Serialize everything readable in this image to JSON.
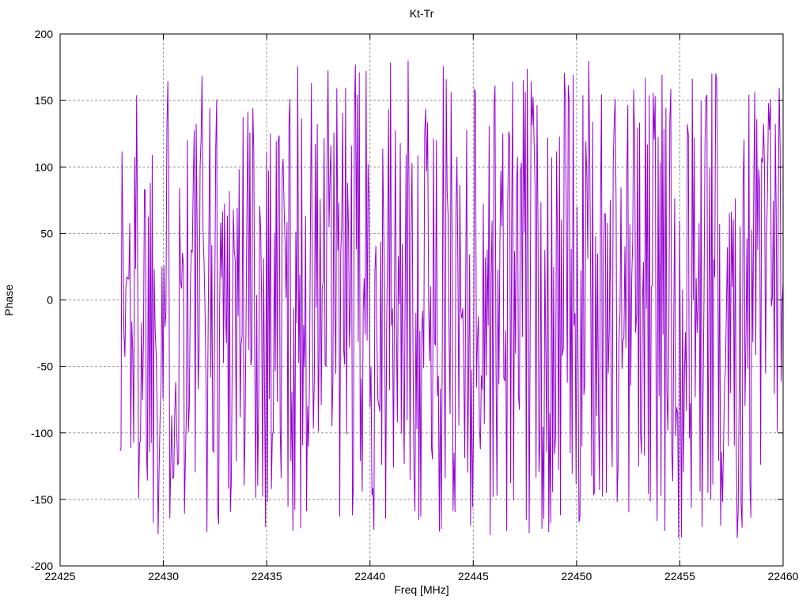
{
  "chart_data": {
    "type": "line",
    "title": "Kt-Tr",
    "xlabel": "Freq [MHz]",
    "ylabel": "Phase",
    "xlim": [
      22425,
      22460
    ],
    "ylim": [
      -200,
      200
    ],
    "x_ticks": [
      22425,
      22430,
      22435,
      22440,
      22445,
      22450,
      22455,
      22460
    ],
    "y_ticks": [
      -200,
      -150,
      -100,
      -50,
      0,
      50,
      100,
      150,
      200
    ],
    "grid": true,
    "grid_style": "dashed",
    "grid_color": "#909090",
    "border_color": "#000000",
    "background_color": "#ffffff",
    "legend": "none",
    "series": [
      {
        "name": "Kt-Tr",
        "color": "#9400d3",
        "style": "lines",
        "line_width": 1,
        "x_start": 22427.9,
        "x_end": 22460.0,
        "n_points": 680,
        "y_min": -180,
        "y_max": 180,
        "signal": "wrapped phase noise, approximately uniform in [-180, 180] deg",
        "prng": {
          "algorithm": "mulberry32",
          "seed": 1337
        }
      }
    ]
  }
}
